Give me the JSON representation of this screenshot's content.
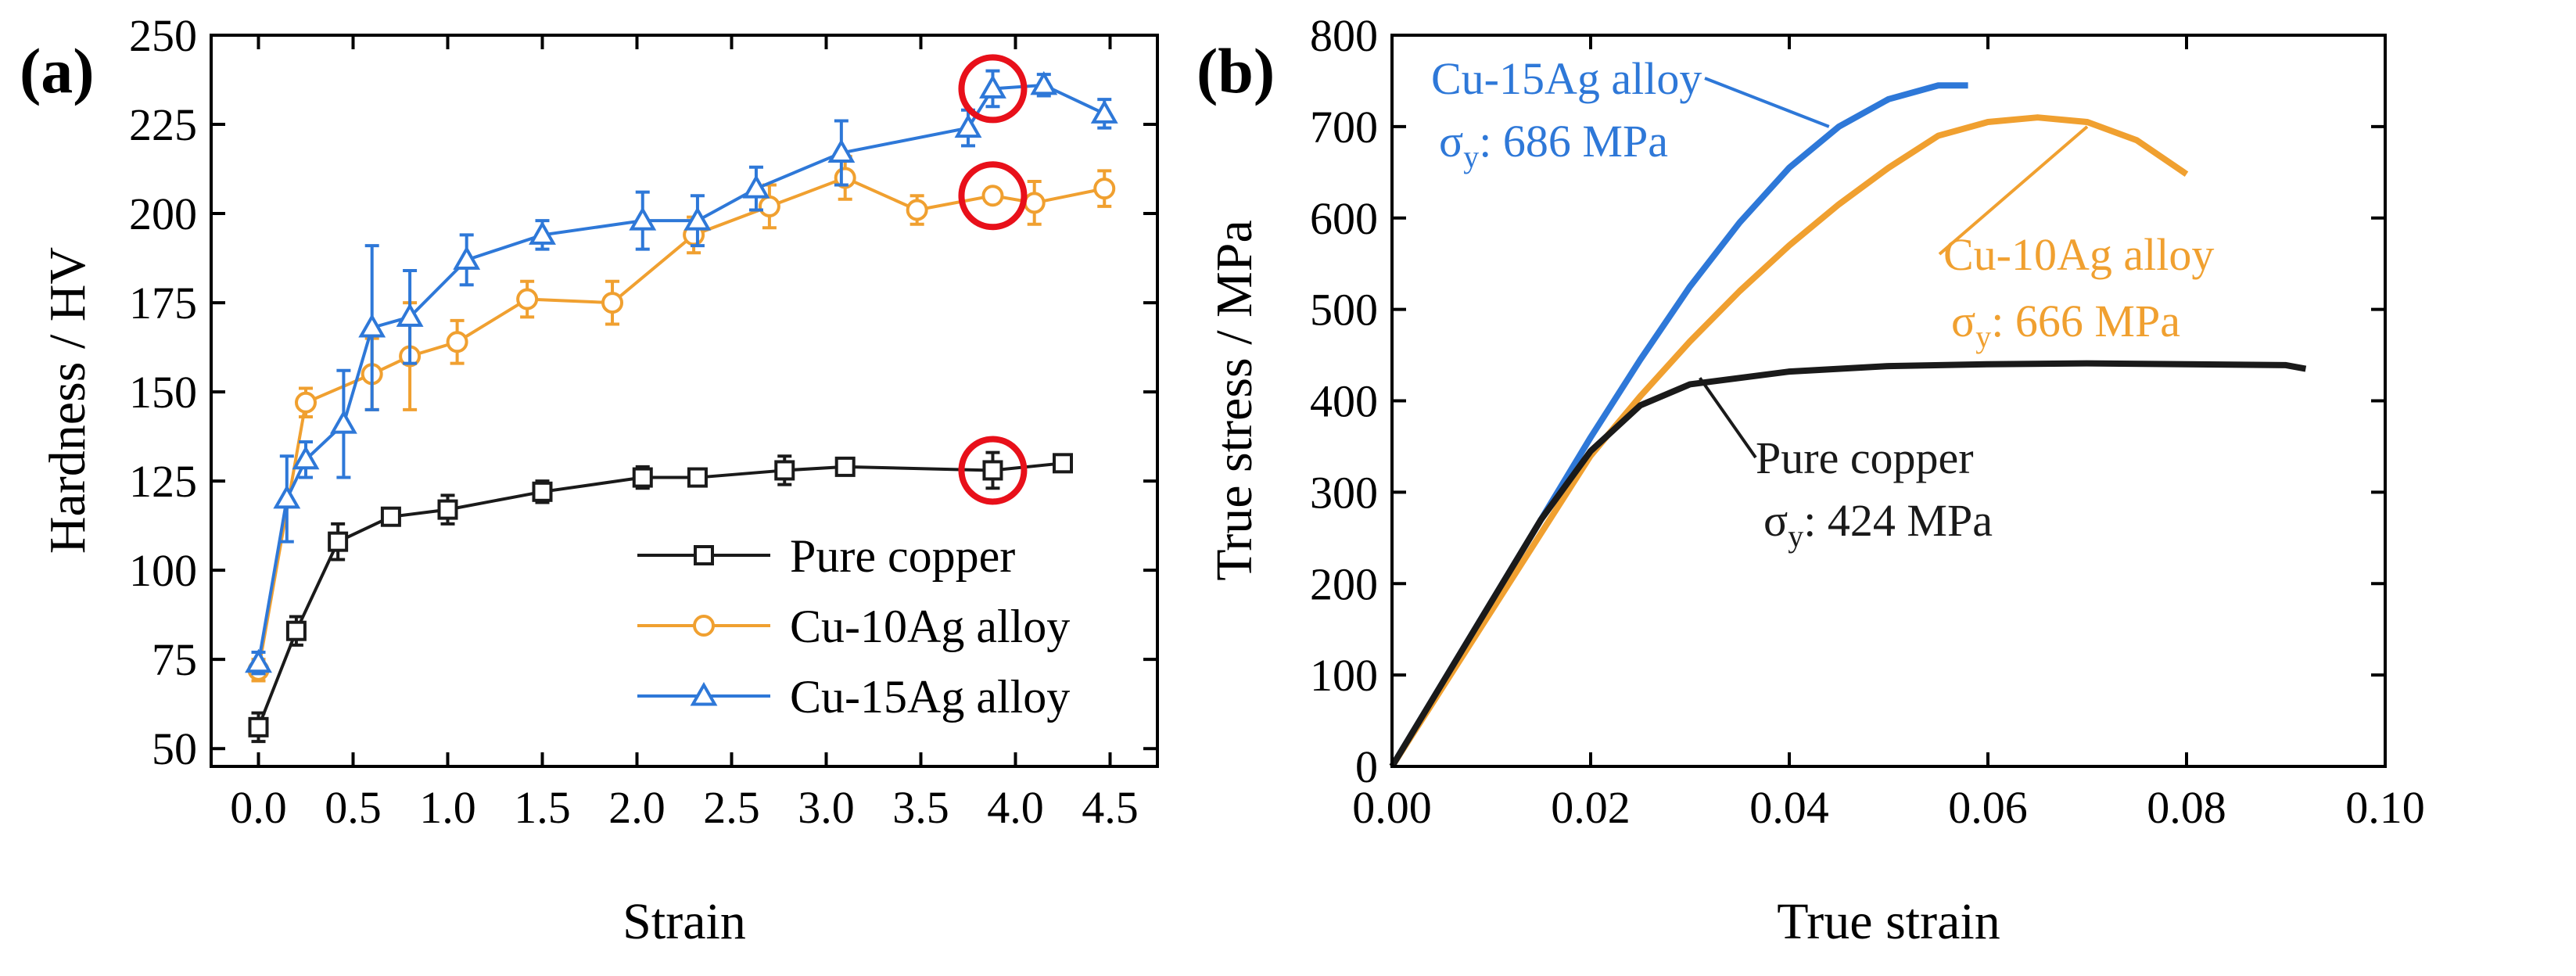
{
  "colors": {
    "pure_copper": "#1a1a1a",
    "cu10ag": "#f0a030",
    "cu15ag": "#2e78d8",
    "highlight": "#e8101a",
    "axis": "#000000"
  },
  "chart_data": [
    {
      "type": "line",
      "panel_label": "(a)",
      "title": "",
      "xlabel": "Strain",
      "ylabel": "Hardness / HV",
      "xlim": [
        -0.25,
        4.75
      ],
      "ylim": [
        45,
        250
      ],
      "x_ticks": [
        0.0,
        0.5,
        1.0,
        1.5,
        2.0,
        2.5,
        3.0,
        3.5,
        4.0,
        4.5
      ],
      "x_tick_labels": [
        "0.0",
        "0.5",
        "1.0",
        "1.5",
        "2.0",
        "2.5",
        "3.0",
        "3.5",
        "4.0",
        "4.5"
      ],
      "y_ticks": [
        50,
        75,
        100,
        125,
        150,
        175,
        200,
        225,
        250
      ],
      "y_tick_labels": [
        "50",
        "75",
        "100",
        "125",
        "150",
        "175",
        "200",
        "225",
        "250"
      ],
      "legend_position": "bottom-right",
      "series": [
        {
          "name": "Pure copper",
          "color_key": "pure_copper",
          "marker": "square",
          "x": [
            0.0,
            0.2,
            0.42,
            0.7,
            1.0,
            1.5,
            2.03,
            2.32,
            2.78,
            3.1,
            3.88,
            4.25
          ],
          "y": [
            56,
            83,
            108,
            115,
            117,
            122,
            126,
            126,
            128,
            129,
            128,
            130
          ],
          "err": [
            4,
            4,
            5,
            2,
            4,
            3,
            3,
            2,
            4,
            2,
            5,
            2
          ]
        },
        {
          "name": "Cu-10Ag alloy",
          "color_key": "cu10ag",
          "marker": "circle",
          "x": [
            0.0,
            0.25,
            0.6,
            0.8,
            1.05,
            1.42,
            1.87,
            2.3,
            2.7,
            3.1,
            3.48,
            3.88,
            4.1,
            4.47
          ],
          "y": [
            72,
            147,
            155,
            160,
            164,
            176,
            175,
            194,
            202,
            210,
            201,
            205,
            203,
            207
          ],
          "err": [
            3,
            4,
            10,
            15,
            6,
            5,
            6,
            5,
            6,
            6,
            4,
            2,
            6,
            5
          ]
        },
        {
          "name": "Cu-15Ag alloy",
          "color_key": "cu15ag",
          "marker": "triangle",
          "x": [
            0.0,
            0.15,
            0.25,
            0.45,
            0.6,
            0.8,
            1.1,
            1.5,
            2.03,
            2.32,
            2.63,
            3.08,
            3.75,
            3.88,
            4.15,
            4.47
          ],
          "y": [
            74,
            120,
            131,
            141,
            168,
            171,
            187,
            194,
            198,
            198,
            207,
            217,
            224,
            235,
            236,
            228
          ],
          "err": [
            3,
            12,
            5,
            15,
            23,
            13,
            7,
            4,
            8,
            7,
            6,
            9,
            5,
            5,
            3,
            4
          ]
        }
      ],
      "highlight_circles": [
        {
          "x": 3.88,
          "y": 235
        },
        {
          "x": 3.88,
          "y": 205
        },
        {
          "x": 3.88,
          "y": 128
        }
      ]
    },
    {
      "type": "line",
      "panel_label": "(b)",
      "title": "",
      "xlabel": "True strain",
      "ylabel": "True stress / MPa",
      "xlim": [
        0.0,
        0.1
      ],
      "ylim": [
        0,
        800
      ],
      "x_ticks": [
        0.0,
        0.02,
        0.04,
        0.06,
        0.08,
        0.1
      ],
      "x_tick_labels": [
        "0.00",
        "0.02",
        "0.04",
        "0.06",
        "0.08",
        "0.10"
      ],
      "y_ticks": [
        0,
        100,
        200,
        300,
        400,
        500,
        600,
        700,
        800
      ],
      "y_tick_labels": [
        "0",
        "100",
        "200",
        "300",
        "400",
        "500",
        "600",
        "700",
        "800"
      ],
      "series": [
        {
          "name": "Cu-15Ag alloy",
          "color_key": "cu15ag",
          "x": [
            0.0,
            0.005,
            0.01,
            0.015,
            0.02,
            0.025,
            0.03,
            0.035,
            0.04,
            0.045,
            0.05,
            0.055,
            0.058
          ],
          "y": [
            0,
            90,
            180,
            270,
            360,
            445,
            525,
            595,
            655,
            700,
            730,
            745,
            745
          ]
        },
        {
          "name": "Cu-10Ag alloy",
          "color_key": "cu10ag",
          "x": [
            0.0,
            0.005,
            0.01,
            0.015,
            0.02,
            0.025,
            0.03,
            0.035,
            0.04,
            0.045,
            0.05,
            0.055,
            0.06,
            0.065,
            0.07,
            0.075,
            0.08
          ],
          "y": [
            0,
            85,
            170,
            255,
            340,
            405,
            465,
            520,
            570,
            615,
            655,
            690,
            705,
            710,
            705,
            685,
            648
          ]
        },
        {
          "name": "Pure copper",
          "color_key": "pure_copper",
          "x": [
            0.0,
            0.005,
            0.01,
            0.015,
            0.02,
            0.025,
            0.03,
            0.04,
            0.05,
            0.06,
            0.07,
            0.08,
            0.09,
            0.092
          ],
          "y": [
            0,
            90,
            180,
            270,
            345,
            395,
            418,
            432,
            438,
            440,
            441,
            440,
            439,
            435
          ]
        }
      ],
      "annotations": [
        {
          "key": "cu15ag",
          "name": "Cu-15Ag alloy",
          "sigma_value": ": 686 MPa",
          "point": [
            0.044,
            700
          ]
        },
        {
          "key": "cu10ag",
          "name": "Cu-10Ag alloy",
          "sigma_value": ": 666 MPa",
          "point": [
            0.07,
            700
          ]
        },
        {
          "key": "pure_copper",
          "name": "Pure copper",
          "sigma_value": ": 424 MPa",
          "point": [
            0.031,
            425
          ]
        }
      ],
      "sigma_symbol": "σ",
      "sigma_subscript": "y"
    }
  ]
}
